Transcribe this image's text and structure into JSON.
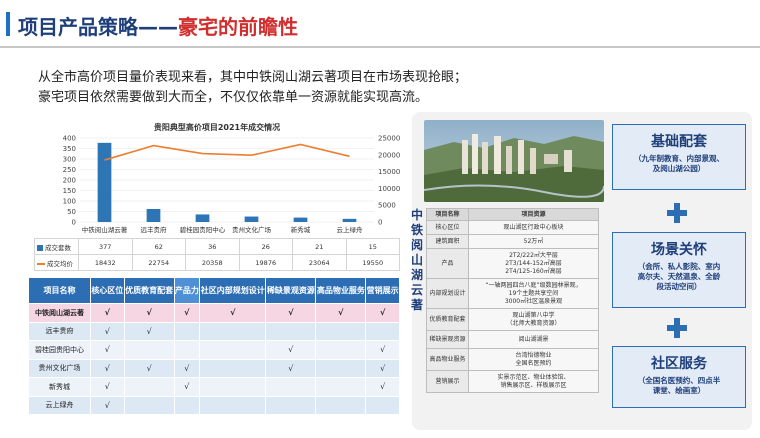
{
  "title": {
    "main": "项目产品策略",
    "sep": "——",
    "highlight": "豪宅的前瞻性"
  },
  "intro": {
    "line1": "从全市高价项目量价表现来看，其中中铁阅山湖云著项目在市场表现抢眼；",
    "line2": "豪宅项目依然需要做到大而全，不仅仅依靠单一资源就能实现高流。"
  },
  "chart_data": {
    "type": "bar",
    "title": "贵阳典型高价项目2021年成交情况",
    "categories": [
      "中铁阅山湖云著",
      "远丰贵府",
      "碧桂园贵阳中心",
      "贵州文化广场",
      "新秀城",
      "云上绿舟"
    ],
    "series": [
      {
        "name": "成交套数",
        "type": "bar",
        "axis": "left",
        "values": [
          377,
          62,
          36,
          26,
          21,
          15
        ]
      },
      {
        "name": "成交均价",
        "type": "line",
        "axis": "right",
        "values": [
          18432,
          22754,
          20358,
          19876,
          23064,
          19550
        ]
      }
    ],
    "ylim_left": [
      0,
      400
    ],
    "yticks_left": [
      0,
      50,
      100,
      150,
      200,
      250,
      300,
      350,
      400
    ],
    "ylim_right": [
      0,
      25000
    ],
    "yticks_right": [
      0,
      5000,
      10000,
      15000,
      20000,
      25000
    ],
    "colors": {
      "bar": "#2e75b6",
      "line": "#ed7d31"
    }
  },
  "chart_table": {
    "row1_label": "成交套数",
    "row2_label": "成交均价",
    "row1": [
      "377",
      "62",
      "36",
      "26",
      "21",
      "15"
    ],
    "row2": [
      "18432",
      "22754",
      "20358",
      "19876",
      "23064",
      "19550"
    ]
  },
  "matrix": {
    "headers": [
      "项目名称",
      "核心区位",
      "优质教育配套",
      "产品力",
      "社区内部规划设计",
      "稀缺景观资源",
      "高品物业服务",
      "营销展示"
    ],
    "rows": [
      {
        "name": "中铁阅山湖云著",
        "marks": [
          "√",
          "√",
          "√",
          "√",
          "√",
          "√",
          "√"
        ]
      },
      {
        "name": "远丰贵府",
        "marks": [
          "√",
          "√",
          "",
          "",
          "",
          "",
          ""
        ]
      },
      {
        "name": "碧桂园贵阳中心",
        "marks": [
          "√",
          "",
          "",
          "",
          "√",
          "",
          "√"
        ]
      },
      {
        "name": "贵州文化广场",
        "marks": [
          "√",
          "√",
          "√",
          "",
          "√",
          "",
          "√"
        ]
      },
      {
        "name": "新秀城",
        "marks": [
          "√",
          "",
          "√",
          "",
          "",
          "",
          "√"
        ]
      },
      {
        "name": "云上绿舟",
        "marks": [
          "√",
          "",
          "",
          "",
          "",
          "",
          ""
        ]
      }
    ]
  },
  "project": {
    "vertical_label": "中铁阅山湖云著",
    "table_header": [
      "项目名称",
      "项目资源"
    ],
    "table_rows": [
      {
        "k": "核心区位",
        "v": "观山湖区行政中心板块"
      },
      {
        "k": "建筑面积",
        "v": "52万㎡"
      },
      {
        "k": "产品",
        "v": "2T2/222㎡大平层\n2T3/144-152㎡高层\n2T4/125-160㎡高层"
      },
      {
        "k": "内部规划设计",
        "v": "“一轴两园四台八庭”级数园林景观，\n19个主题共享空间\n3000㎡社区温泉景观"
      },
      {
        "k": "优质教育配套",
        "v": "观山湖第八中学\n（北师大教育资源）"
      },
      {
        "k": "稀缺景观资源",
        "v": "阅山湖湖景"
      },
      {
        "k": "高品物业服务",
        "v": "台湾怡德物业\n全国名医预约"
      },
      {
        "k": "营销展示",
        "v": "实景示范区、物业体验馆、\n销售展示区、样板展示区"
      }
    ]
  },
  "boxes": [
    {
      "title": "基础配套",
      "sub": "（九年制教育、内部景观、\n及阅山湖公园）"
    },
    {
      "title": "场景关怀",
      "sub": "（会所、私人影院、室内\n高尔夫、天然温泉、全龄\n段活动空间）"
    },
    {
      "title": "社区服务",
      "sub": "（全国名医预约、四点半\n课堂、绘画室）"
    }
  ]
}
